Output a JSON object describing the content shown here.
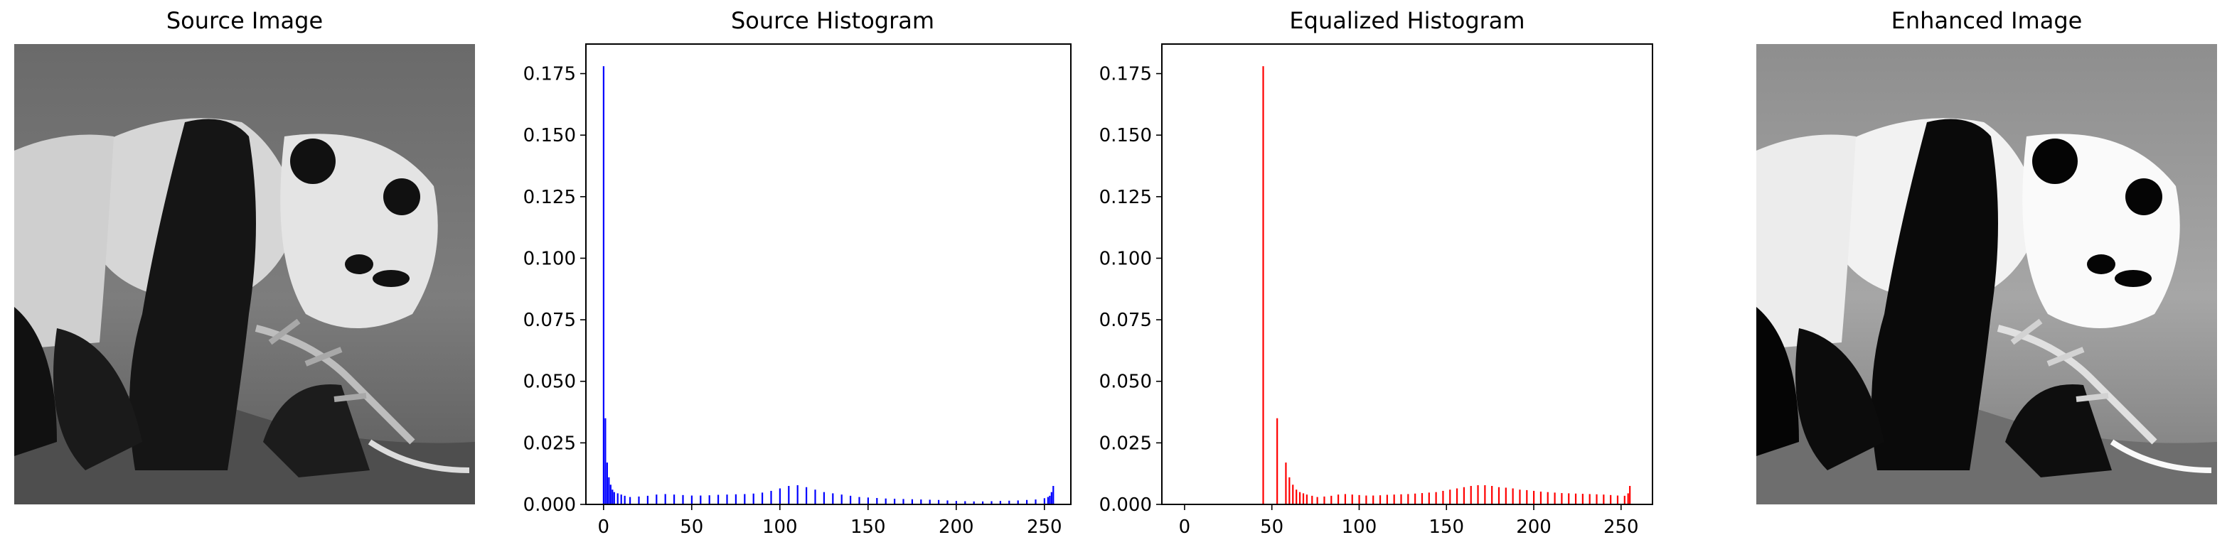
{
  "panels": {
    "source_image": {
      "title": "Source Image"
    },
    "source_histogram": {
      "title": "Source Histogram"
    },
    "equalized_histogram": {
      "title": "Equalized Histogram"
    },
    "enhanced_image": {
      "title": "Enhanced Image"
    }
  },
  "colors": {
    "source_bars": "#0000ff",
    "equalized_bars": "#ff0000",
    "axes": "#000000"
  },
  "chart_data": [
    {
      "type": "bar",
      "title": "Source Histogram",
      "xlabel": "",
      "ylabel": "",
      "xlim": [
        -10,
        265
      ],
      "ylim": [
        0,
        0.187
      ],
      "xticks": [
        0,
        50,
        100,
        150,
        200,
        250
      ],
      "yticks": [
        0.0,
        0.025,
        0.05,
        0.075,
        0.1,
        0.125,
        0.15,
        0.175
      ],
      "grid": false,
      "color": "#0000ff",
      "x": [
        0,
        1,
        2,
        3,
        4,
        5,
        6,
        8,
        10,
        12,
        15,
        20,
        25,
        30,
        35,
        40,
        45,
        50,
        55,
        60,
        65,
        70,
        75,
        80,
        85,
        90,
        95,
        100,
        105,
        110,
        115,
        120,
        125,
        130,
        135,
        140,
        145,
        150,
        155,
        160,
        165,
        170,
        175,
        180,
        185,
        190,
        195,
        200,
        205,
        210,
        215,
        220,
        225,
        230,
        235,
        240,
        245,
        250,
        252,
        253,
        254,
        255
      ],
      "values": [
        0.178,
        0.035,
        0.017,
        0.011,
        0.008,
        0.006,
        0.005,
        0.0045,
        0.004,
        0.0035,
        0.003,
        0.0032,
        0.0035,
        0.004,
        0.0042,
        0.004,
        0.0038,
        0.0036,
        0.0036,
        0.0037,
        0.0039,
        0.004,
        0.0041,
        0.0042,
        0.0044,
        0.0048,
        0.0055,
        0.0065,
        0.0075,
        0.0078,
        0.007,
        0.006,
        0.005,
        0.0045,
        0.004,
        0.0035,
        0.003,
        0.0028,
        0.0026,
        0.0024,
        0.0023,
        0.0022,
        0.0021,
        0.002,
        0.0019,
        0.0018,
        0.0016,
        0.0014,
        0.0013,
        0.0012,
        0.0012,
        0.0013,
        0.0014,
        0.0015,
        0.0016,
        0.0018,
        0.002,
        0.0025,
        0.003,
        0.0035,
        0.005,
        0.0075
      ]
    },
    {
      "type": "bar",
      "title": "Equalized Histogram",
      "xlabel": "",
      "ylabel": "",
      "xlim": [
        -13,
        268
      ],
      "ylim": [
        0,
        0.187
      ],
      "xticks": [
        0,
        50,
        100,
        150,
        200,
        250
      ],
      "yticks": [
        0.0,
        0.025,
        0.05,
        0.075,
        0.1,
        0.125,
        0.15,
        0.175
      ],
      "grid": false,
      "color": "#ff0000",
      "x": [
        45,
        53,
        58,
        60,
        62,
        64,
        66,
        68,
        70,
        73,
        76,
        80,
        84,
        88,
        92,
        96,
        100,
        104,
        108,
        112,
        116,
        120,
        124,
        128,
        132,
        136,
        140,
        144,
        148,
        152,
        156,
        160,
        164,
        168,
        172,
        176,
        180,
        184,
        188,
        192,
        196,
        200,
        204,
        208,
        212,
        216,
        220,
        224,
        228,
        232,
        236,
        240,
        244,
        248,
        252,
        254,
        255
      ],
      "values": [
        0.178,
        0.035,
        0.017,
        0.011,
        0.008,
        0.006,
        0.005,
        0.0045,
        0.004,
        0.0035,
        0.003,
        0.0032,
        0.0035,
        0.004,
        0.0042,
        0.004,
        0.0038,
        0.0036,
        0.0036,
        0.0037,
        0.0039,
        0.004,
        0.0041,
        0.0042,
        0.0044,
        0.0046,
        0.0048,
        0.005,
        0.0055,
        0.006,
        0.0065,
        0.007,
        0.0075,
        0.0078,
        0.0078,
        0.0075,
        0.007,
        0.0068,
        0.0065,
        0.006,
        0.0058,
        0.0055,
        0.0052,
        0.005,
        0.0048,
        0.0046,
        0.0045,
        0.0044,
        0.0043,
        0.0042,
        0.0041,
        0.004,
        0.0038,
        0.0036,
        0.0035,
        0.0045,
        0.0075
      ]
    }
  ]
}
